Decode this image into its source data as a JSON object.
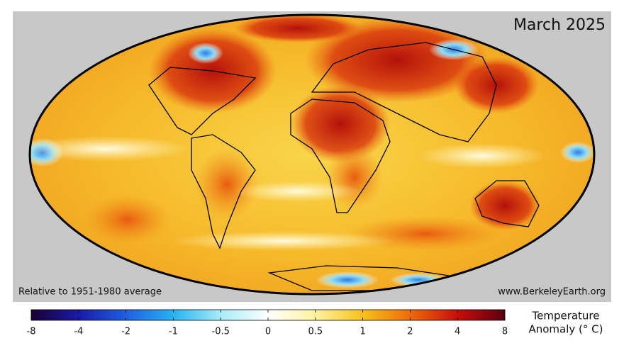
{
  "map": {
    "title": "March 2025",
    "note": "Relative to 1951-1980 average",
    "source": "www.BerkeleyEarth.org",
    "colorbar": {
      "label": [
        "Temperature",
        "Anomaly (° C)"
      ],
      "ticks": [
        -8,
        -4,
        -2,
        -1,
        -0.5,
        0,
        0.5,
        1,
        2,
        4,
        8
      ]
    }
  }
}
